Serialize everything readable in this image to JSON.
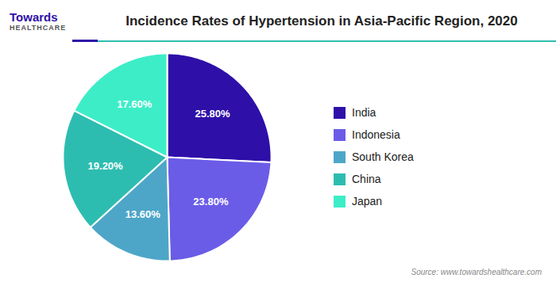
{
  "chart_data": {
    "type": "pie",
    "title": "Incidence Rates of Hypertension in Asia-Pacific Region, 2020",
    "categories": [
      "India",
      "Indonesia",
      "South Korea",
      "China",
      "Japan"
    ],
    "values": [
      25.8,
      23.8,
      13.6,
      19.2,
      17.6
    ],
    "value_labels": [
      "25.80%",
      "23.80%",
      "13.60%",
      "19.20%",
      "17.60%"
    ],
    "colors": [
      "#2E0FA8",
      "#6B5CE7",
      "#4DA6C8",
      "#2DBDB0",
      "#3DEDC8"
    ],
    "data_labels": true,
    "legend": "right",
    "annotations": [
      "Towards",
      "HEALTHCARE",
      "Source: www.towardshealthcare.com"
    ]
  }
}
